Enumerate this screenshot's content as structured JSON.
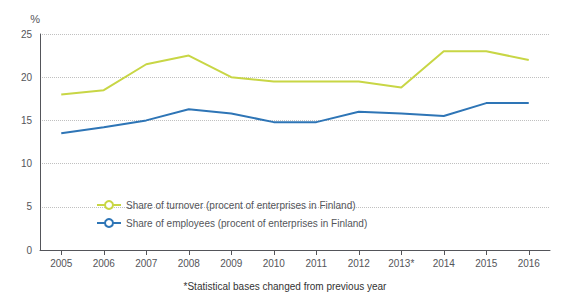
{
  "chart_data": {
    "type": "line",
    "categories": [
      "2005",
      "2006",
      "2007",
      "2008",
      "2009",
      "2010",
      "2011",
      "2012",
      "2013*",
      "2014",
      "2015",
      "2016"
    ],
    "series": [
      {
        "name": "Share of turnover (procent of enterprises in Finland)",
        "color": "#c8d645",
        "values": [
          18.0,
          18.5,
          21.5,
          22.5,
          20.0,
          19.5,
          19.5,
          19.5,
          18.8,
          23.0,
          23.0,
          22.0
        ]
      },
      {
        "name": "Share of employees (procent of enterprises in Finland)",
        "color": "#2e75b6",
        "values": [
          13.5,
          14.2,
          15.0,
          16.3,
          15.8,
          14.8,
          14.8,
          16.0,
          15.8,
          15.5,
          17.0,
          17.0
        ]
      }
    ],
    "ylabel": "%",
    "ylim": [
      0,
      25
    ],
    "yticks": [
      0,
      5,
      10,
      15,
      20,
      25
    ],
    "grid": true,
    "legend": "lower left",
    "annotations": [
      "*Statistical bases changed from previous year"
    ]
  }
}
